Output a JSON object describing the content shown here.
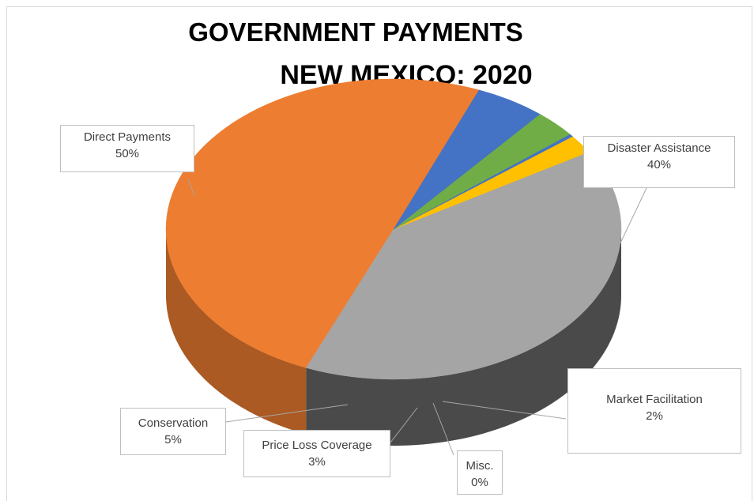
{
  "chart_data": {
    "type": "pie",
    "title": "GOVERNMENT PAYMENTS",
    "subtitle": "NEW MEXICO: 2020",
    "slices": [
      {
        "label": "Direct Payments",
        "percent_label": "50%",
        "value": 50,
        "color": "#ed7d31"
      },
      {
        "label": "Disaster Assistance",
        "percent_label": "40%",
        "value": 40,
        "color": "#a5a5a5"
      },
      {
        "label": "Market Facilitation",
        "percent_label": "2%",
        "value": 2,
        "color": "#ffc000"
      },
      {
        "label": "Misc.",
        "percent_label": "0%",
        "value": 0.3,
        "color": "#4472c4"
      },
      {
        "label": "Price Loss Coverage",
        "percent_label": "3%",
        "value": 3,
        "color": "#70ad47"
      },
      {
        "label": "Conservation",
        "percent_label": "5%",
        "value": 5,
        "color": "#4472c4"
      }
    ],
    "legend": "none",
    "style": "3d-pie"
  }
}
